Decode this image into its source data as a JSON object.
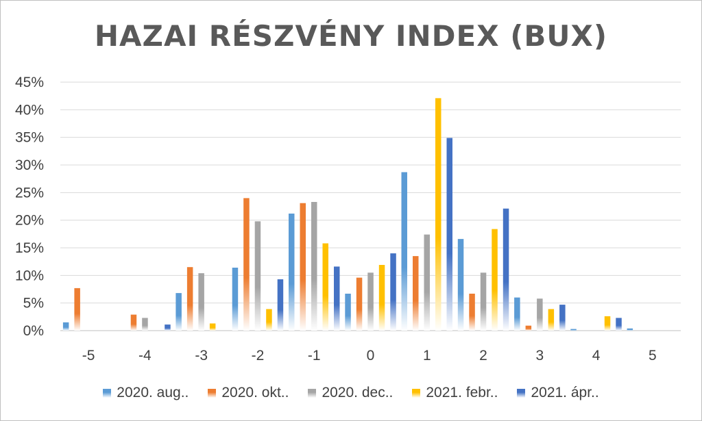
{
  "chart_data": {
    "type": "bar",
    "title": "HAZAI RÉSZVÉNY INDEX (BUX)",
    "xlabel": "",
    "ylabel": "",
    "categories": [
      "-5",
      "-4",
      "-3",
      "-2",
      "-1",
      "0",
      "1",
      "2",
      "3",
      "4",
      "5"
    ],
    "ylim": [
      0,
      45
    ],
    "yticks": [
      "0%",
      "5%",
      "10%",
      "15%",
      "20%",
      "25%",
      "30%",
      "35%",
      "40%",
      "45%"
    ],
    "grid": true,
    "legend_position": "bottom",
    "series": [
      {
        "name": "2020. aug..",
        "color": "#5b9bd5",
        "values": [
          1.5,
          0,
          6.8,
          11.4,
          21.2,
          6.7,
          28.7,
          16.6,
          6.0,
          0.3,
          0.4
        ]
      },
      {
        "name": "2020. okt..",
        "color": "#ed7d31",
        "values": [
          7.7,
          2.9,
          11.5,
          24.0,
          23.1,
          9.6,
          13.5,
          6.7,
          0.9,
          0,
          0
        ]
      },
      {
        "name": "2020. dec..",
        "color": "#a5a5a5",
        "values": [
          0,
          2.3,
          10.4,
          19.8,
          23.3,
          10.5,
          17.4,
          10.5,
          5.8,
          0,
          0
        ]
      },
      {
        "name": "2021. febr..",
        "color": "#ffc000",
        "values": [
          0,
          0,
          1.3,
          3.9,
          15.8,
          11.9,
          42.1,
          18.4,
          3.9,
          2.6,
          0
        ]
      },
      {
        "name": "2021. ápr..",
        "color": "#4472c4",
        "values": [
          0,
          1.1,
          0,
          9.3,
          11.6,
          14.0,
          34.9,
          22.1,
          4.7,
          2.3,
          0
        ]
      }
    ]
  }
}
